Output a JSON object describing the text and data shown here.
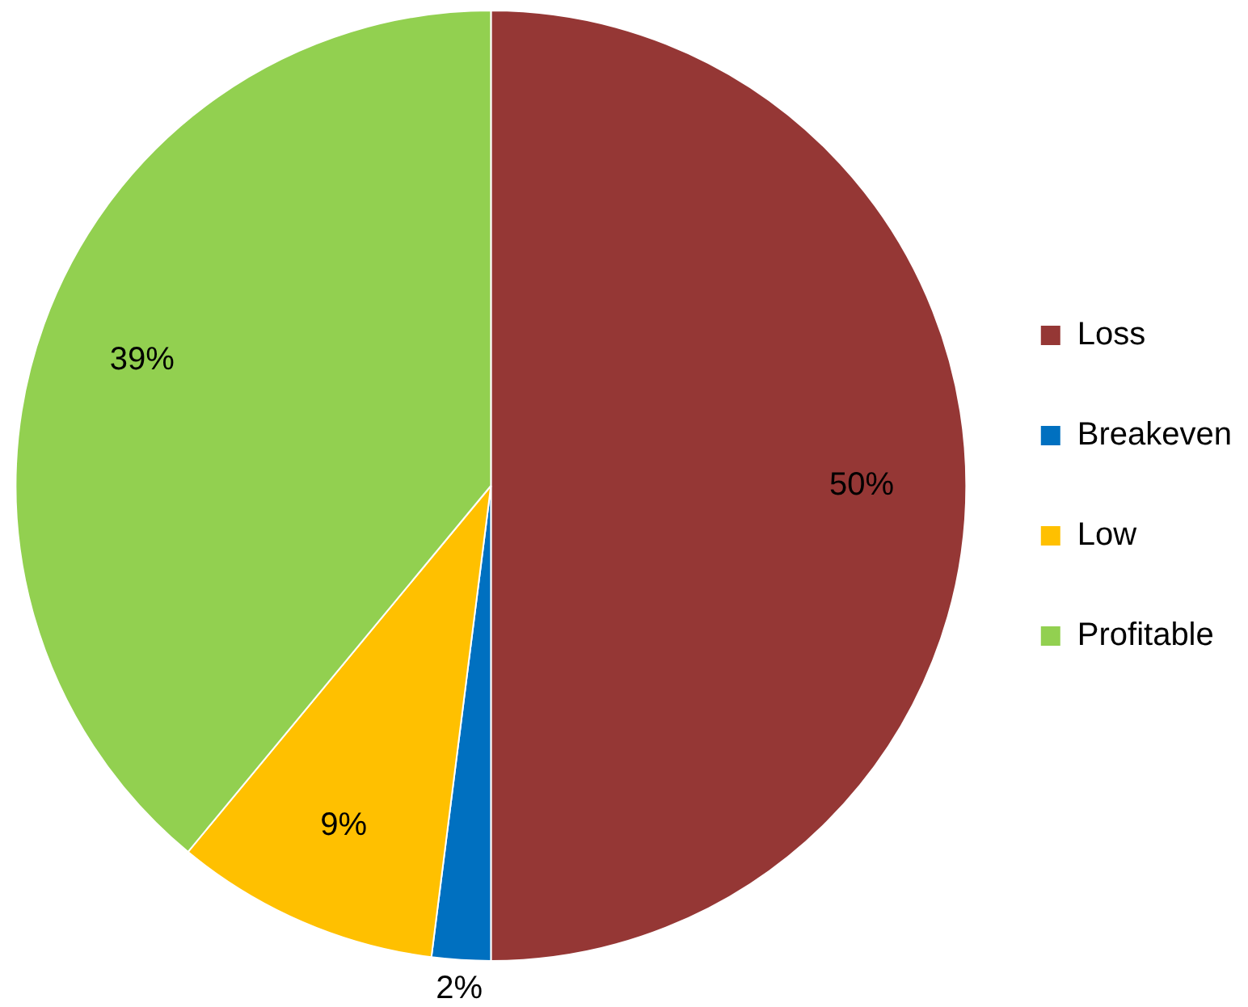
{
  "chart_data": {
    "type": "pie",
    "categories": [
      "Loss",
      "Breakeven",
      "Low",
      "Profitable"
    ],
    "values": [
      50,
      2,
      9,
      39
    ],
    "colors": [
      "#953735",
      "#0070c0",
      "#ffc000",
      "#92d050"
    ],
    "value_labels": [
      "50%",
      "2%",
      "9%",
      "39%"
    ],
    "legend": "right"
  }
}
